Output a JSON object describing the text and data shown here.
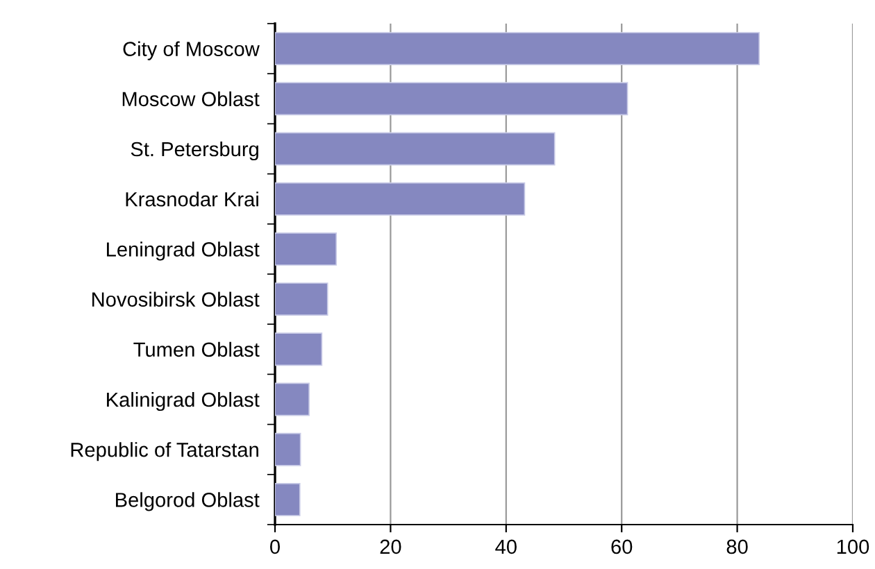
{
  "chart_data": {
    "type": "bar",
    "orientation": "horizontal",
    "categories": [
      "City of Moscow",
      "Moscow Oblast",
      "St. Petersburg",
      "Krasnodar Krai",
      "Leningrad Oblast",
      "Novosibirsk Oblast",
      "Tumen Oblast",
      "Kalinigrad Oblast",
      "Republic of Tatarstan",
      "Belgorod Oblast"
    ],
    "values": [
      83.8,
      61.0,
      48.4,
      43.2,
      10.6,
      9.1,
      8.1,
      5.9,
      4.4,
      4.3
    ],
    "color": "#8588c0",
    "xlim": [
      0,
      100
    ],
    "xticks": [
      0,
      20,
      40,
      60,
      80,
      100
    ],
    "grid": "x",
    "legend": false
  }
}
